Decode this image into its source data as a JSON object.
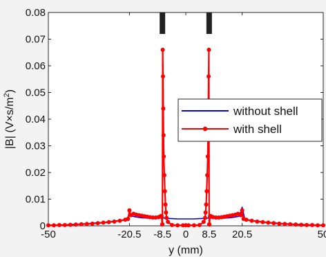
{
  "chart_data": {
    "type": "line",
    "xlabel": "y (mm)",
    "ylabel_main": "|B| (V×s/m",
    "ylabel_sup": "2",
    "ylabel_close": ")",
    "xlim": [
      -50,
      50
    ],
    "ylim": [
      0,
      0.08
    ],
    "xticks": [
      -50,
      -20.5,
      -8.5,
      0,
      8.5,
      20.5,
      50
    ],
    "xtick_labels": [
      "-50",
      "-20.5",
      "-8.5",
      "0",
      "8.5",
      "20.5",
      "50"
    ],
    "yticks": [
      0,
      0.01,
      0.02,
      0.03,
      0.04,
      0.05,
      0.06,
      0.07,
      0.08
    ],
    "ytick_labels": [
      "0",
      "0.01",
      "0.02",
      "0.03",
      "0.04",
      "0.05",
      "0.06",
      "0.07",
      "0.08"
    ],
    "legend_position": "center-right",
    "series": [
      {
        "name": "without shell",
        "color": "#0000ff",
        "marker": "none",
        "x": [
          -50,
          -45,
          -40,
          -35,
          -30,
          -25,
          -21.5,
          -20.5,
          -19.5,
          -18,
          -16,
          -14,
          -12,
          -10,
          -9,
          -8.5,
          -8,
          -7,
          -5,
          -3,
          0,
          3,
          5,
          7,
          8,
          8.5,
          9,
          10,
          12,
          14,
          16,
          18,
          19.5,
          20.5,
          21.5,
          25,
          30,
          35,
          40,
          45,
          50
        ],
        "y": [
          0.0002,
          0.0004,
          0.0006,
          0.0009,
          0.0013,
          0.0019,
          0.0024,
          0.0045,
          0.0036,
          0.0033,
          0.003,
          0.0029,
          0.0028,
          0.0028,
          0.0029,
          0.003,
          0.0029,
          0.0028,
          0.0027,
          0.0026,
          0.0026,
          0.0026,
          0.0027,
          0.0028,
          0.0029,
          0.003,
          0.0029,
          0.0028,
          0.0028,
          0.0029,
          0.003,
          0.0033,
          0.0036,
          0.007,
          0.0024,
          0.0019,
          0.0013,
          0.0009,
          0.0006,
          0.0004,
          0.0002
        ]
      },
      {
        "name": "with shell",
        "color": "#ff0000",
        "marker": "circle",
        "x": [
          -50,
          -48,
          -46,
          -44,
          -42,
          -40,
          -38,
          -36,
          -34,
          -32,
          -30,
          -28,
          -26,
          -24,
          -22,
          -21,
          -20.5,
          -20,
          -19,
          -18,
          -17,
          -16,
          -15,
          -14,
          -13,
          -12,
          -11,
          -10,
          -9.5,
          -9,
          -8.8,
          -8.6,
          -8.5,
          -8.4,
          -8.3,
          -8.2,
          -8.1,
          -8.0,
          -7.8,
          -7.6,
          -7.4,
          -7.2,
          -7.0,
          -6.5,
          -5,
          -3,
          -1,
          0,
          1,
          3,
          5,
          6.5,
          7.0,
          7.2,
          7.4,
          7.6,
          7.8,
          8.0,
          8.1,
          8.2,
          8.3,
          8.4,
          8.5,
          8.6,
          8.8,
          9,
          9.5,
          10,
          11,
          12,
          13,
          14,
          15,
          16,
          17,
          18,
          19,
          20,
          20.5,
          21,
          22,
          24,
          26,
          28,
          30,
          32,
          34,
          36,
          38,
          40,
          42,
          44,
          46,
          48,
          50
        ],
        "y": [
          0.0002,
          0.0002,
          0.0003,
          0.0003,
          0.0004,
          0.0005,
          0.0006,
          0.0007,
          0.0008,
          0.001,
          0.0012,
          0.0014,
          0.0016,
          0.0019,
          0.0023,
          0.0026,
          0.0058,
          0.004,
          0.0045,
          0.0042,
          0.004,
          0.0038,
          0.0036,
          0.0034,
          0.0032,
          0.0031,
          0.0031,
          0.0032,
          0.0034,
          0.0037,
          0.0036,
          0.0005,
          0.0006,
          0.066,
          0.056,
          0.044,
          0.034,
          0.026,
          0.019,
          0.013,
          0.008,
          0.005,
          0.003,
          0.0015,
          0.0003,
          0.0002,
          0.0002,
          0.0002,
          0.0002,
          0.0002,
          0.0003,
          0.0015,
          0.003,
          0.005,
          0.008,
          0.013,
          0.019,
          0.026,
          0.034,
          0.044,
          0.056,
          0.066,
          0.0006,
          0.0005,
          0.0036,
          0.0037,
          0.0034,
          0.0032,
          0.0031,
          0.0031,
          0.0032,
          0.0034,
          0.0036,
          0.0038,
          0.004,
          0.0042,
          0.0045,
          0.004,
          0.0058,
          0.0026,
          0.0023,
          0.0019,
          0.0016,
          0.0014,
          0.0012,
          0.001,
          0.0008,
          0.0007,
          0.0006,
          0.0005,
          0.0004,
          0.0003,
          0.0003,
          0.0002,
          0.0002
        ]
      }
    ],
    "grid": false,
    "annotations": [
      "shell-markers-top"
    ]
  }
}
